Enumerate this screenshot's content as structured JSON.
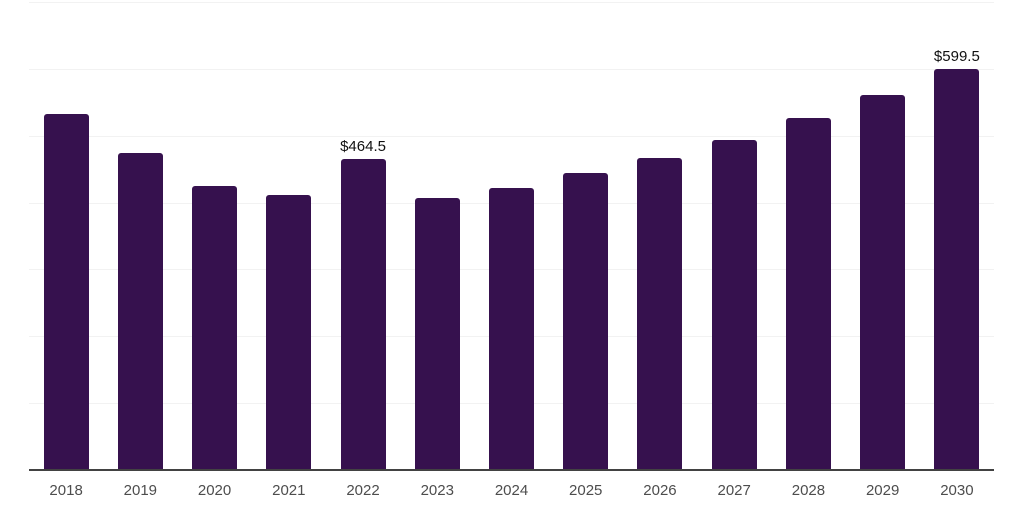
{
  "chart_data": {
    "type": "bar",
    "title": "",
    "xlabel": "",
    "ylabel": "",
    "categories": [
      "2018",
      "2019",
      "2020",
      "2021",
      "2022",
      "2023",
      "2024",
      "2025",
      "2026",
      "2027",
      "2028",
      "2029",
      "2030"
    ],
    "values": [
      533,
      473.5,
      425.5,
      412,
      464.5,
      407,
      422.5,
      443.5,
      466,
      494,
      526,
      560.5,
      599.5
    ],
    "data_labels": {
      "2022": "$464.5",
      "2030": "$599.5"
    },
    "value_prefix": "$",
    "ylim": [
      0,
      700
    ],
    "grid_step": 100,
    "grid": "horizontal",
    "legend": "none",
    "colors": {
      "bar": "#36114e",
      "gridline": "#f2f2f2",
      "axis_line": "#424242",
      "x_label": "#4d4d4d",
      "value_label": "#111111",
      "background": "#ffffff"
    }
  }
}
